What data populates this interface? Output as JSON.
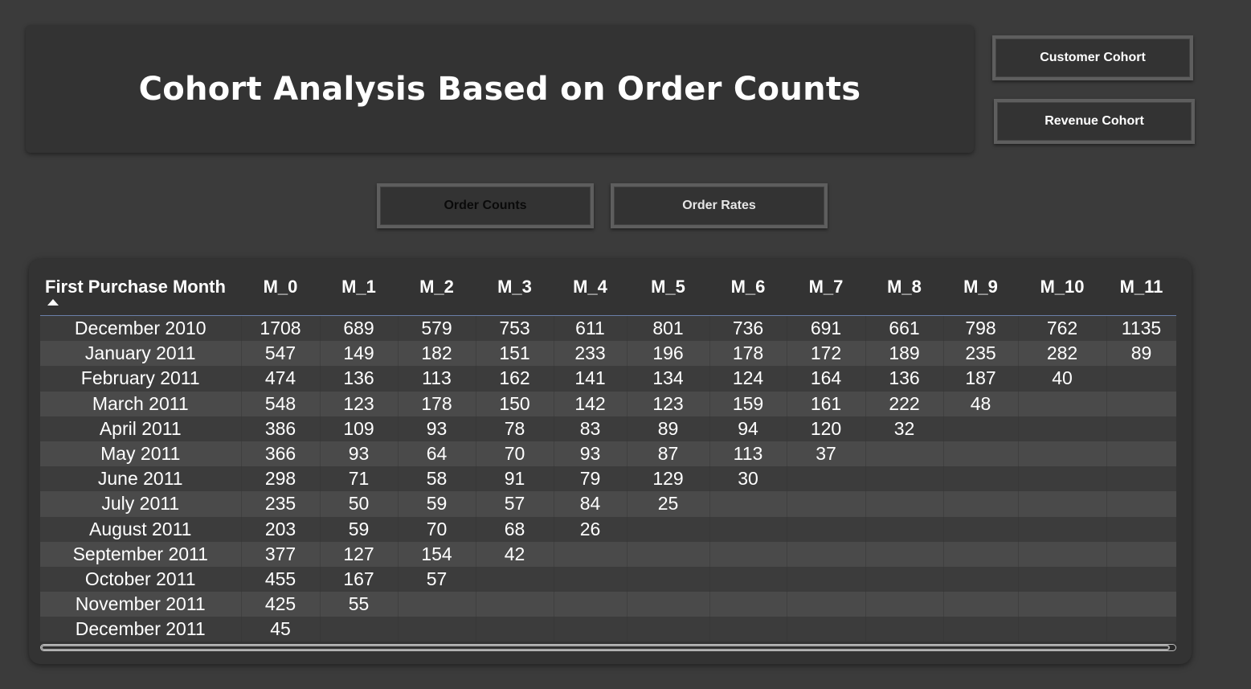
{
  "title": "Cohort Analysis Based on Order Counts",
  "buttons": {
    "customer_cohort": "Customer Cohort",
    "revenue_cohort": "Revenue Cohort",
    "order_counts": "Order Counts",
    "order_rates": "Order Rates"
  },
  "table": {
    "columns": [
      "First Purchase Month",
      "M_0",
      "M_1",
      "M_2",
      "M_3",
      "M_4",
      "M_5",
      "M_6",
      "M_7",
      "M_8",
      "M_9",
      "M_10",
      "M_11"
    ],
    "sort": {
      "column": "First Purchase Month",
      "direction": "ascending"
    },
    "rows": [
      {
        "month": "December 2010",
        "values": [
          "1708",
          "689",
          "579",
          "753",
          "611",
          "801",
          "736",
          "691",
          "661",
          "798",
          "762",
          "1135"
        ]
      },
      {
        "month": "January 2011",
        "values": [
          "547",
          "149",
          "182",
          "151",
          "233",
          "196",
          "178",
          "172",
          "189",
          "235",
          "282",
          "89"
        ]
      },
      {
        "month": "February 2011",
        "values": [
          "474",
          "136",
          "113",
          "162",
          "141",
          "134",
          "124",
          "164",
          "136",
          "187",
          "40",
          ""
        ]
      },
      {
        "month": "March 2011",
        "values": [
          "548",
          "123",
          "178",
          "150",
          "142",
          "123",
          "159",
          "161",
          "222",
          "48",
          "",
          ""
        ]
      },
      {
        "month": "April 2011",
        "values": [
          "386",
          "109",
          "93",
          "78",
          "83",
          "89",
          "94",
          "120",
          "32",
          "",
          "",
          ""
        ]
      },
      {
        "month": "May 2011",
        "values": [
          "366",
          "93",
          "64",
          "70",
          "93",
          "87",
          "113",
          "37",
          "",
          "",
          "",
          ""
        ]
      },
      {
        "month": "June 2011",
        "values": [
          "298",
          "71",
          "58",
          "91",
          "79",
          "129",
          "30",
          "",
          "",
          "",
          "",
          ""
        ]
      },
      {
        "month": "July 2011",
        "values": [
          "235",
          "50",
          "59",
          "57",
          "84",
          "25",
          "",
          "",
          "",
          "",
          "",
          ""
        ]
      },
      {
        "month": "August 2011",
        "values": [
          "203",
          "59",
          "70",
          "68",
          "26",
          "",
          "",
          "",
          "",
          "",
          "",
          ""
        ]
      },
      {
        "month": "September 2011",
        "values": [
          "377",
          "127",
          "154",
          "42",
          "",
          "",
          "",
          "",
          "",
          "",
          "",
          ""
        ]
      },
      {
        "month": "October 2011",
        "values": [
          "455",
          "167",
          "57",
          "",
          "",
          "",
          "",
          "",
          "",
          "",
          "",
          ""
        ]
      },
      {
        "month": "November 2011",
        "values": [
          "425",
          "55",
          "",
          "",
          "",
          "",
          "",
          "",
          "",
          "",
          "",
          ""
        ]
      },
      {
        "month": "December 2011",
        "values": [
          "45",
          "",
          "",
          "",
          "",
          "",
          "",
          "",
          "",
          "",
          "",
          ""
        ]
      }
    ]
  }
}
